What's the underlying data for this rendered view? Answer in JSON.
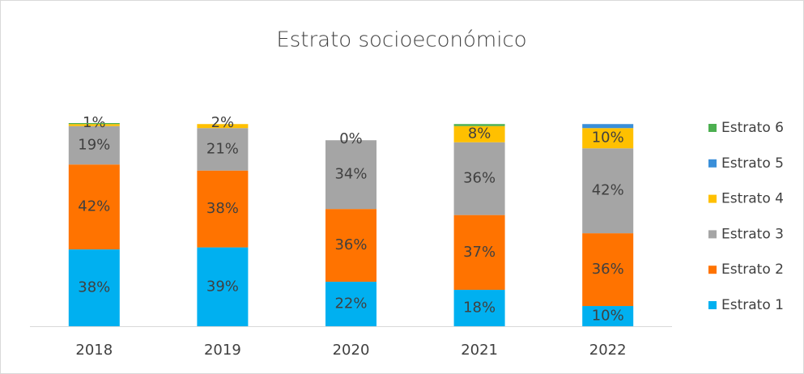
{
  "chart_data": {
    "type": "stacked_bar",
    "title": "Estrato socioeconómico",
    "categories": [
      "2018",
      "2019",
      "2020",
      "2021",
      "2022"
    ],
    "series": [
      {
        "name": "Estrato 1",
        "color": "#00b0f0",
        "values": [
          38,
          39,
          22,
          18,
          10
        ],
        "value_labels": [
          "38%",
          "39%",
          "22%",
          "18%",
          "10%"
        ]
      },
      {
        "name": "Estrato 2",
        "color": "#ff7300",
        "values": [
          42,
          38,
          36,
          37,
          36
        ],
        "value_labels": [
          "42%",
          "38%",
          "36%",
          "37%",
          "36%"
        ]
      },
      {
        "name": "Estrato 3",
        "color": "#a5a5a5",
        "values": [
          19,
          21,
          34,
          36,
          42
        ],
        "value_labels": [
          "19%",
          "21%",
          "34%",
          "36%",
          "42%"
        ]
      },
      {
        "name": "Estrato 4",
        "color": "#ffc000",
        "values": [
          1,
          2,
          0,
          8,
          10
        ],
        "value_labels": [
          "1%",
          "2%",
          "0%",
          "8%",
          "10%"
        ]
      },
      {
        "name": "Estrato 5",
        "color": "#3a8fd9",
        "values": [
          0,
          0,
          0,
          0,
          2
        ]
      },
      {
        "name": "Estrato 6",
        "color": "#4caf50",
        "values": [
          0.5,
          0,
          0,
          1,
          0
        ]
      }
    ],
    "legend": "right"
  }
}
